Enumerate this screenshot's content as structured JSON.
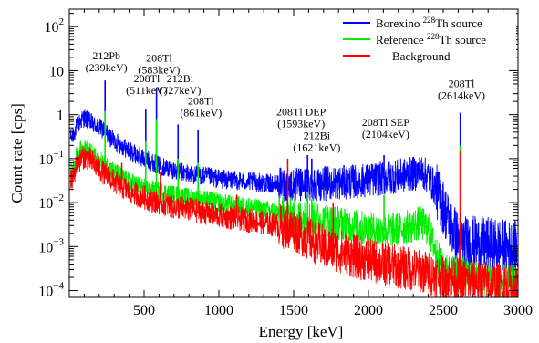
{
  "chart_data": {
    "type": "line",
    "xlabel": "Energy [keV]",
    "ylabel": "Count rate [cps]",
    "xlim": [
      0,
      3000
    ],
    "ylim": [
      7e-05,
      250
    ],
    "y_scale": "log",
    "grid": false,
    "legend_position": "top-right",
    "x_ticks": [
      {
        "value": 500,
        "label": "500"
      },
      {
        "value": 1000,
        "label": "1000"
      },
      {
        "value": 1500,
        "label": "1500"
      },
      {
        "value": 2000,
        "label": "2000"
      },
      {
        "value": 2500,
        "label": "2500"
      },
      {
        "value": 3000,
        "label": "3000"
      }
    ],
    "y_ticks": [
      {
        "value": 0.0001,
        "base": "10",
        "exp": "−4"
      },
      {
        "value": 0.001,
        "base": "10",
        "exp": "−3"
      },
      {
        "value": 0.01,
        "base": "10",
        "exp": "−2"
      },
      {
        "value": 0.1,
        "base": "10",
        "exp": "−1"
      },
      {
        "value": 1,
        "base": "1",
        "exp": ""
      },
      {
        "value": 10,
        "base": "10",
        "exp": ""
      },
      {
        "value": 100,
        "base": "10",
        "exp": "2"
      }
    ],
    "series": [
      {
        "name_pre": "Borexino ",
        "name_sup": "228",
        "name_post": "Th source",
        "color": "#0000ff",
        "noise": 0.22,
        "x": [
          20,
          50,
          80,
          100,
          130,
          160,
          200,
          230,
          260,
          300,
          350,
          400,
          450,
          500,
          600,
          700,
          800,
          900,
          1000,
          1100,
          1200,
          1300,
          1400,
          1500,
          1600,
          1700,
          1800,
          1900,
          2000,
          2100,
          2200,
          2300,
          2350,
          2400,
          2450,
          2500,
          2550,
          2600,
          2650,
          2700,
          2800,
          2900,
          2980
        ],
        "y": [
          0.3,
          0.55,
          0.75,
          0.85,
          0.7,
          0.6,
          0.5,
          0.45,
          0.35,
          0.25,
          0.2,
          0.15,
          0.12,
          0.1,
          0.07,
          0.055,
          0.045,
          0.04,
          0.035,
          0.032,
          0.03,
          0.028,
          0.026,
          0.025,
          0.026,
          0.027,
          0.028,
          0.03,
          0.032,
          0.035,
          0.04,
          0.045,
          0.05,
          0.04,
          0.02,
          0.008,
          0.003,
          0.0015,
          0.0012,
          0.0012,
          0.0011,
          0.001,
          0.0009
        ],
        "peaks": [
          {
            "x": 239,
            "y": 6
          },
          {
            "x": 511,
            "y": 1.3
          },
          {
            "x": 583,
            "y": 4
          },
          {
            "x": 727,
            "y": 0.6
          },
          {
            "x": 861,
            "y": 0.45
          },
          {
            "x": 1593,
            "y": 0.12
          },
          {
            "x": 1621,
            "y": 0.1
          },
          {
            "x": 2104,
            "y": 0.12
          },
          {
            "x": 2614,
            "y": 1.1
          }
        ]
      },
      {
        "name_pre": "Reference ",
        "name_sup": "228",
        "name_post": "Th source",
        "color": "#00ee00",
        "noise": 0.22,
        "x": [
          20,
          50,
          80,
          100,
          130,
          160,
          200,
          250,
          300,
          400,
          500,
          600,
          700,
          800,
          900,
          1000,
          1100,
          1200,
          1300,
          1400,
          1500,
          1600,
          1700,
          1800,
          1900,
          2000,
          2100,
          2200,
          2300,
          2350,
          2400,
          2450,
          2500,
          2600,
          2700,
          2800,
          2980
        ],
        "y": [
          0.05,
          0.12,
          0.16,
          0.17,
          0.15,
          0.12,
          0.09,
          0.07,
          0.05,
          0.03,
          0.022,
          0.018,
          0.015,
          0.013,
          0.012,
          0.01,
          0.009,
          0.008,
          0.007,
          0.006,
          0.005,
          0.0045,
          0.004,
          0.0035,
          0.003,
          0.0025,
          0.0022,
          0.0025,
          0.003,
          0.0035,
          0.0025,
          0.0008,
          0.0003,
          0.00025,
          0.0002,
          0.00018,
          0.00015
        ],
        "peaks": [
          {
            "x": 239,
            "y": 1.2
          },
          {
            "x": 511,
            "y": 0.25
          },
          {
            "x": 583,
            "y": 0.8
          },
          {
            "x": 727,
            "y": 0.1
          },
          {
            "x": 861,
            "y": 0.08
          },
          {
            "x": 1593,
            "y": 0.015
          },
          {
            "x": 1621,
            "y": 0.012
          },
          {
            "x": 2104,
            "y": 0.015
          },
          {
            "x": 2614,
            "y": 0.2
          }
        ]
      },
      {
        "name_pre": "Background",
        "name_sup": "",
        "name_post": "",
        "color": "#ff0000",
        "noise": 0.28,
        "x": [
          20,
          50,
          80,
          100,
          130,
          160,
          200,
          250,
          300,
          400,
          500,
          600,
          700,
          800,
          900,
          1000,
          1100,
          1200,
          1300,
          1400,
          1500,
          1600,
          1700,
          1800,
          1900,
          2000,
          2100,
          2200,
          2300,
          2400,
          2500,
          2600,
          2700,
          2800,
          2900,
          2980
        ],
        "y": [
          0.03,
          0.08,
          0.1,
          0.11,
          0.1,
          0.08,
          0.06,
          0.04,
          0.03,
          0.018,
          0.013,
          0.01,
          0.008,
          0.007,
          0.006,
          0.005,
          0.0045,
          0.004,
          0.0035,
          0.003,
          0.0025,
          0.0015,
          0.001,
          0.0008,
          0.0006,
          0.0005,
          0.0004,
          0.00035,
          0.0003,
          0.00025,
          0.0002,
          0.00018,
          0.00016,
          0.00015,
          0.00013,
          0.00012
        ],
        "peaks": [
          {
            "x": 351,
            "y": 0.08
          },
          {
            "x": 609,
            "y": 0.05
          },
          {
            "x": 1120,
            "y": 0.015
          },
          {
            "x": 1460,
            "y": 0.1
          },
          {
            "x": 1764,
            "y": 0.01
          },
          {
            "x": 2614,
            "y": 0.15
          }
        ]
      }
    ],
    "annotations": [
      {
        "x": 248,
        "y": 18,
        "lines": [
          "212Pb",
          "(239keV)"
        ]
      },
      {
        "x": 518,
        "y": 5.5,
        "lines": [
          "208Tl",
          "(511keV)"
        ]
      },
      {
        "x": 600,
        "y": 16,
        "lines": [
          "208Tl",
          "(583keV)"
        ]
      },
      {
        "x": 740,
        "y": 5.5,
        "lines": [
          "212Bi",
          "(727keV)"
        ]
      },
      {
        "x": 880,
        "y": 1.7,
        "lines": [
          "208Tl",
          "(861keV)"
        ]
      },
      {
        "x": 1550,
        "y": 0.95,
        "lines": [
          "208Tl DEP",
          "(1593keV)"
        ]
      },
      {
        "x": 1655,
        "y": 0.28,
        "lines": [
          "212Bi",
          "(1621keV)"
        ]
      },
      {
        "x": 2115,
        "y": 0.55,
        "lines": [
          "208Tl SEP",
          "(2104keV)"
        ]
      },
      {
        "x": 2622,
        "y": 4.2,
        "lines": [
          "208Tl",
          "(2614keV)"
        ]
      }
    ]
  }
}
